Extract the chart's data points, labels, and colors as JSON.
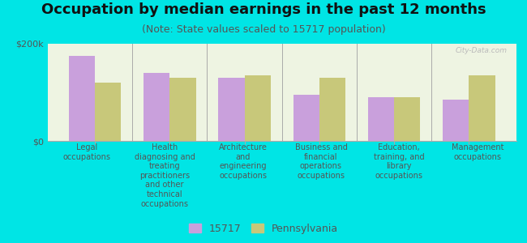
{
  "title": "Occupation by median earnings in the past 12 months",
  "subtitle": "(Note: State values scaled to 15717 population)",
  "background_color": "#00e5e5",
  "categories": [
    "Legal\noccupations",
    "Health\ndiagnosing and\ntreating\npractitioners\nand other\ntechnical\noccupations",
    "Architecture\nand\nengineering\noccupations",
    "Business and\nfinancial\noperations\noccupations",
    "Education,\ntraining, and\nlibrary\noccupations",
    "Management\noccupations"
  ],
  "values_15717": [
    175000,
    140000,
    130000,
    95000,
    90000,
    85000
  ],
  "values_pennsylvania": [
    120000,
    130000,
    135000,
    130000,
    90000,
    135000
  ],
  "color_15717": "#c9a0dc",
  "color_pennsylvania": "#c8c87a",
  "plot_bg_color": "#eef4e2",
  "ylim": [
    0,
    200000
  ],
  "ytick_labels": [
    "$0",
    "$200k"
  ],
  "legend_15717": "15717",
  "legend_pennsylvania": "Pennsylvania",
  "bar_width": 0.35,
  "title_fontsize": 13,
  "subtitle_fontsize": 9,
  "axis_label_fontsize": 8,
  "cat_label_fontsize": 7,
  "legend_fontsize": 9,
  "tick_label_color": "#555555",
  "title_color": "#111111",
  "subtitle_color": "#555555",
  "watermark": "City-Data.com"
}
